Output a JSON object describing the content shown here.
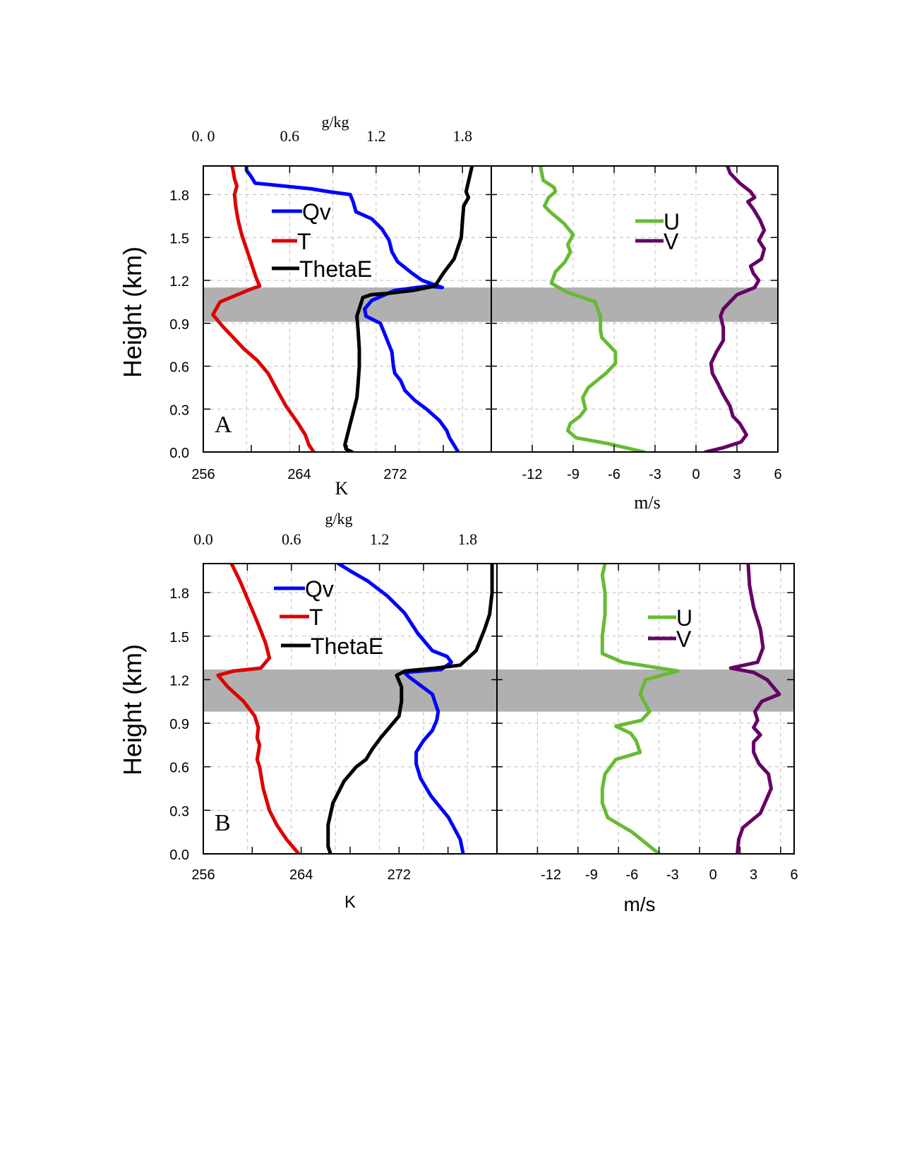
{
  "figure": {
    "y_label": "Height (km)",
    "y_ticks": [
      "0.0",
      "0.3",
      "0.6",
      "0.9",
      "1.2",
      "1.5",
      "1.8"
    ]
  },
  "panels": [
    {
      "panel_label": "A",
      "top_axis_title": "g/kg",
      "top_ticks": [
        "0. 0",
        "0.6",
        "1.2",
        "1.8"
      ],
      "left_xlabel": "K",
      "left_ticks": [
        "256",
        "264",
        "272"
      ],
      "right_xlabel": "m/s",
      "right_ticks": [
        "-12",
        "-9",
        "-6",
        "-3",
        "0",
        "3",
        "6"
      ],
      "legend_left": [
        "Qv",
        "T",
        "ThetaE"
      ],
      "legend_right": [
        "U",
        "V"
      ]
    },
    {
      "panel_label": "B",
      "top_axis_title": "g/kg",
      "top_ticks": [
        "0.0",
        "0.6",
        "1.2",
        "1.8"
      ],
      "left_xlabel": "K",
      "left_ticks": [
        "256",
        "264",
        "272"
      ],
      "right_xlabel": "m/s",
      "right_ticks": [
        "-12",
        "-9",
        "-6",
        "-3",
        "0",
        "3",
        "6"
      ],
      "legend_left": [
        "Qv",
        "T",
        "ThetaE"
      ],
      "legend_right": [
        "U",
        "V"
      ]
    }
  ],
  "colors": {
    "Qv": "#0000ff",
    "T": "#dd0000",
    "ThetaE": "#000000",
    "U": "#66bb33",
    "V": "#660066",
    "shade": "#b0b0b0"
  },
  "chart_data": [
    {
      "type": "line",
      "panel": "A",
      "ylim": [
        0,
        2.0
      ],
      "y_unit": "km",
      "temperature_axis": {
        "xlim": [
          256,
          280
        ],
        "unit": "K"
      },
      "humidity_axis": {
        "xlim": [
          0,
          2.0
        ],
        "unit": "g/kg"
      },
      "wind_axis": {
        "xlim": [
          -15,
          6
        ],
        "unit": "m/s"
      },
      "shaded_layer": [
        0.91,
        1.15
      ],
      "grid": true,
      "legend_position": "top",
      "series": [
        {
          "name": "Qv",
          "axis": "humidity",
          "x": [
            1.77,
            1.74,
            1.71,
            1.69,
            1.64,
            1.55,
            1.47,
            1.4,
            1.37,
            1.33,
            1.32,
            1.31,
            1.27,
            1.23,
            1.13,
            1.12,
            1.17,
            1.33,
            1.56,
            1.66,
            1.52,
            1.45,
            1.35,
            1.31,
            1.29,
            1.24,
            1.17,
            1.06,
            1.04,
            1.02,
            0.87,
            0.75,
            0.36,
            0.33,
            0.3,
            0.3
          ],
          "y": [
            0.0,
            0.05,
            0.1,
            0.15,
            0.22,
            0.3,
            0.36,
            0.43,
            0.5,
            0.55,
            0.6,
            0.7,
            0.8,
            0.9,
            0.95,
            1.0,
            1.06,
            1.13,
            1.16,
            1.15,
            1.2,
            1.25,
            1.33,
            1.4,
            1.48,
            1.56,
            1.63,
            1.68,
            1.75,
            1.8,
            1.82,
            1.84,
            1.88,
            1.93,
            1.97,
            2.0
          ]
        },
        {
          "name": "T",
          "axis": "temperature",
          "x": [
            265.2,
            264.8,
            264.5,
            263.9,
            262.9,
            262.1,
            261.4,
            260.5,
            259.4,
            258.5,
            257.6,
            256.8,
            257.4,
            260.0,
            260.7,
            260.4,
            260.0,
            259.6,
            259.2,
            258.9,
            258.7,
            258.6,
            258.8,
            258.6,
            258.5,
            258.4
          ],
          "y": [
            0.0,
            0.05,
            0.12,
            0.2,
            0.32,
            0.44,
            0.55,
            0.64,
            0.72,
            0.8,
            0.88,
            0.96,
            1.05,
            1.14,
            1.16,
            1.22,
            1.32,
            1.42,
            1.52,
            1.62,
            1.72,
            1.8,
            1.86,
            1.91,
            1.96,
            2.0
          ]
        },
        {
          "name": "ThetaE",
          "axis": "temperature",
          "x": [
            268.4,
            267.9,
            267.8,
            268.1,
            268.5,
            268.8,
            268.9,
            269.0,
            269.0,
            268.9,
            268.8,
            269.3,
            270.0,
            271.5,
            273.5,
            275.3,
            276.0,
            276.9,
            277.5,
            277.6,
            277.7,
            278.1,
            277.9,
            278.4
          ],
          "y": [
            0.0,
            0.02,
            0.05,
            0.15,
            0.28,
            0.38,
            0.48,
            0.6,
            0.72,
            0.85,
            0.95,
            1.08,
            1.1,
            1.11,
            1.13,
            1.16,
            1.25,
            1.35,
            1.5,
            1.62,
            1.72,
            1.78,
            1.82,
            2.0
          ]
        },
        {
          "name": "U",
          "axis": "wind",
          "x": [
            -3.8,
            -6.5,
            -8.8,
            -9.4,
            -9.2,
            -8.5,
            -8.1,
            -8.3,
            -7.9,
            -6.6,
            -5.9,
            -5.9,
            -6.4,
            -6.9,
            -7.0,
            -7.0,
            -7.4,
            -9.5,
            -10.6,
            -10.3,
            -9.6,
            -9.2,
            -9.4,
            -9.0,
            -9.7,
            -10.7,
            -11.1,
            -10.8,
            -10.3,
            -10.4,
            -11.2,
            -11.4
          ],
          "y": [
            0.0,
            0.06,
            0.1,
            0.15,
            0.2,
            0.25,
            0.3,
            0.38,
            0.45,
            0.55,
            0.62,
            0.7,
            0.75,
            0.8,
            0.85,
            0.95,
            1.05,
            1.12,
            1.18,
            1.26,
            1.33,
            1.4,
            1.45,
            1.52,
            1.6,
            1.68,
            1.72,
            1.78,
            1.82,
            1.85,
            1.9,
            2.0
          ]
        },
        {
          "name": "V",
          "axis": "wind",
          "x": [
            0.7,
            2.0,
            3.3,
            3.7,
            3.2,
            2.7,
            2.5,
            2.0,
            1.6,
            1.2,
            1.1,
            1.5,
            2.0,
            2.0,
            1.8,
            2.0,
            2.5,
            3.0,
            4.3,
            4.6,
            4.2,
            4.0,
            4.8,
            5.0,
            4.6,
            5.0,
            4.7,
            4.2,
            3.8,
            4.3,
            4.0,
            3.2,
            2.5,
            2.3
          ],
          "y": [
            0.0,
            0.03,
            0.07,
            0.12,
            0.2,
            0.25,
            0.32,
            0.4,
            0.48,
            0.55,
            0.62,
            0.7,
            0.78,
            0.87,
            0.95,
            1.0,
            1.05,
            1.1,
            1.15,
            1.2,
            1.25,
            1.3,
            1.35,
            1.42,
            1.48,
            1.55,
            1.62,
            1.7,
            1.75,
            1.78,
            1.82,
            1.88,
            1.95,
            2.0
          ]
        }
      ]
    },
    {
      "type": "line",
      "panel": "B",
      "ylim": [
        0,
        2.0
      ],
      "y_unit": "km",
      "temperature_axis": {
        "xlim": [
          256,
          280
        ],
        "unit": "K"
      },
      "humidity_axis": {
        "xlim": [
          0,
          2.0
        ],
        "unit": "g/kg"
      },
      "wind_axis": {
        "xlim": [
          -16,
          6
        ],
        "unit": "m/s"
      },
      "shaded_layer": [
        0.98,
        1.27
      ],
      "grid": true,
      "legend_position": "top",
      "series": [
        {
          "name": "Qv",
          "axis": "humidity",
          "x": [
            1.77,
            1.75,
            1.67,
            1.55,
            1.48,
            1.45,
            1.45,
            1.5,
            1.56,
            1.59,
            1.6,
            1.56,
            1.4,
            1.37,
            1.49,
            1.62,
            1.69,
            1.66,
            1.56,
            1.46,
            1.37,
            1.25,
            1.12,
            1.0,
            0.92
          ],
          "y": [
            0.0,
            0.1,
            0.25,
            0.4,
            0.52,
            0.62,
            0.7,
            0.78,
            0.85,
            0.92,
            0.98,
            1.1,
            1.22,
            1.25,
            1.26,
            1.27,
            1.32,
            1.36,
            1.4,
            1.52,
            1.66,
            1.78,
            1.88,
            1.95,
            2.0
          ]
        },
        {
          "name": "T",
          "axis": "temperature",
          "x": [
            263.8,
            262.8,
            262.0,
            261.4,
            260.9,
            260.6,
            260.4,
            260.6,
            260.4,
            260.5,
            260.2,
            259.3,
            258.0,
            257.2,
            258.5,
            260.7,
            261.4,
            261.1,
            260.5,
            259.8,
            259.0,
            258.3
          ],
          "y": [
            0.0,
            0.1,
            0.2,
            0.3,
            0.45,
            0.6,
            0.65,
            0.75,
            0.8,
            0.87,
            0.95,
            1.05,
            1.15,
            1.23,
            1.26,
            1.28,
            1.35,
            1.45,
            1.58,
            1.72,
            1.88,
            2.0
          ]
        },
        {
          "name": "ThetaE",
          "axis": "temperature",
          "x": [
            266.4,
            266.2,
            266.2,
            266.6,
            267.5,
            268.5,
            269.3,
            269.8,
            270.5,
            271.2,
            272.0,
            272.2,
            272.2,
            271.8,
            272.5,
            275.0,
            277.0,
            278.3,
            279.0,
            279.4,
            279.6,
            279.6
          ],
          "y": [
            0.0,
            0.05,
            0.2,
            0.35,
            0.5,
            0.6,
            0.65,
            0.72,
            0.8,
            0.87,
            0.95,
            1.05,
            1.15,
            1.23,
            1.26,
            1.28,
            1.3,
            1.4,
            1.55,
            1.65,
            1.8,
            2.0
          ]
        },
        {
          "name": "U",
          "axis": "wind",
          "x": [
            -4.0,
            -6.0,
            -7.8,
            -8.2,
            -8.2,
            -8.0,
            -7.2,
            -5.4,
            -5.7,
            -6.1,
            -7.2,
            -5.3,
            -4.7,
            -5.4,
            -5.0,
            -2.6,
            -6.7,
            -8.2,
            -8.2,
            -8.0,
            -8.0,
            -8.2,
            -8.0
          ],
          "y": [
            0.0,
            0.15,
            0.25,
            0.35,
            0.45,
            0.55,
            0.65,
            0.7,
            0.78,
            0.83,
            0.88,
            0.92,
            0.98,
            1.1,
            1.2,
            1.26,
            1.32,
            1.38,
            1.5,
            1.65,
            1.8,
            1.92,
            2.0
          ]
        },
        {
          "name": "V",
          "axis": "wind",
          "x": [
            1.8,
            1.9,
            2.2,
            3.5,
            4.3,
            4.1,
            3.4,
            3.0,
            3.0,
            3.5,
            3.0,
            3.3,
            3.1,
            3.6,
            4.9,
            4.0,
            3.0,
            1.3,
            3.3,
            3.7,
            3.5,
            3.0,
            2.7,
            2.6
          ],
          "y": [
            0.0,
            0.1,
            0.18,
            0.28,
            0.45,
            0.55,
            0.62,
            0.7,
            0.77,
            0.82,
            0.87,
            0.92,
            0.98,
            1.05,
            1.1,
            1.2,
            1.25,
            1.28,
            1.32,
            1.42,
            1.55,
            1.7,
            1.85,
            2.0
          ]
        }
      ]
    }
  ]
}
